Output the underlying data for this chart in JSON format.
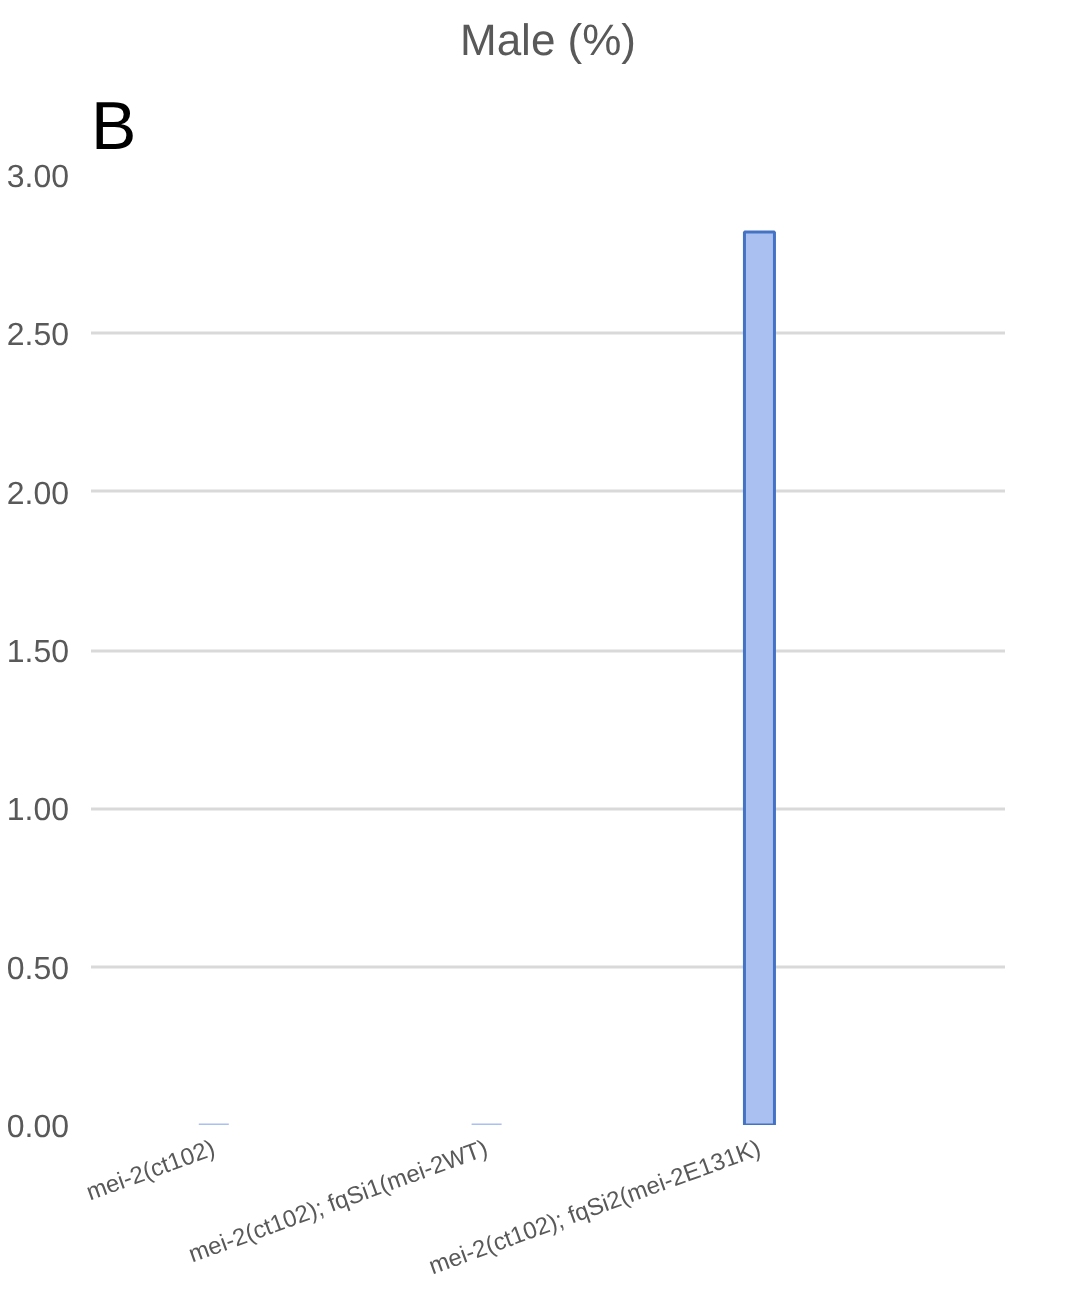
{
  "chart_data": {
    "type": "bar",
    "title": "Male (%)",
    "annotations": [
      "B"
    ],
    "categories": [
      "mei-2(ct102)",
      "mei-2(ct102); fqSi1(mei-2WT)",
      "mei-2(ct102); fqSi2(mei-2E131K)"
    ],
    "values": [
      0,
      0,
      2.82
    ],
    "color": "#a9c0f0",
    "ylim": [
      0,
      3
    ],
    "yticks": [
      {
        "value": 0,
        "label": "0.00"
      },
      {
        "value": 0.5,
        "label": "0.50"
      },
      {
        "value": 1,
        "label": "1.00"
      },
      {
        "value": 1.5,
        "label": "1.50"
      },
      {
        "value": 2,
        "label": "2.00"
      },
      {
        "value": 2.5,
        "label": "2.50"
      },
      {
        "value": 3,
        "label": "3.00"
      }
    ],
    "grid": "y"
  }
}
